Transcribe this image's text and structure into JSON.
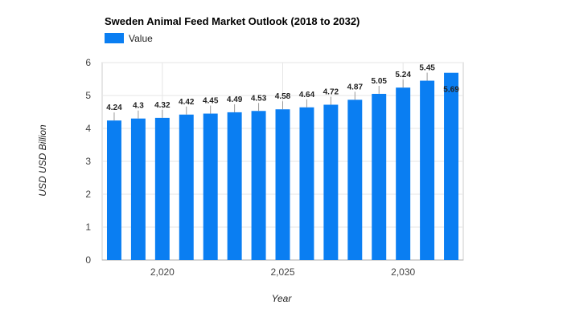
{
  "chart_data": {
    "type": "bar",
    "title": "Sweden Animal Feed Market Outlook (2018 to 2032)",
    "xlabel": "Year",
    "ylabel": "USD USD Billion",
    "legend": {
      "entries": [
        "Value"
      ],
      "position": "top-left"
    },
    "ylim": [
      0,
      6
    ],
    "yticks": [
      "0",
      "1",
      "2",
      "3",
      "4",
      "5",
      "6"
    ],
    "xlim": [
      2017.5,
      2032.5
    ],
    "xticks": [
      {
        "value": 2020,
        "label": "2,020"
      },
      {
        "value": 2025,
        "label": "2,025"
      },
      {
        "value": 2030,
        "label": "2,030"
      }
    ],
    "grid": true,
    "x": [
      2018,
      2019,
      2020,
      2021,
      2022,
      2023,
      2024,
      2025,
      2026,
      2027,
      2028,
      2029,
      2030,
      2031,
      2032
    ],
    "values": [
      4.24,
      4.3,
      4.32,
      4.42,
      4.45,
      4.49,
      4.53,
      4.58,
      4.64,
      4.72,
      4.87,
      5.05,
      5.24,
      5.45,
      5.69
    ],
    "labels": [
      "4.24",
      "4.3",
      "4.32",
      "4.42",
      "4.45",
      "4.49",
      "4.53",
      "4.58",
      "4.64",
      "4.72",
      "4.87",
      "5.05",
      "5.24",
      "5.45",
      "5.69"
    ],
    "colors": {
      "bar": "#0a7ef2",
      "grid": "#e6e6e6",
      "axis": "#cccccc"
    }
  }
}
